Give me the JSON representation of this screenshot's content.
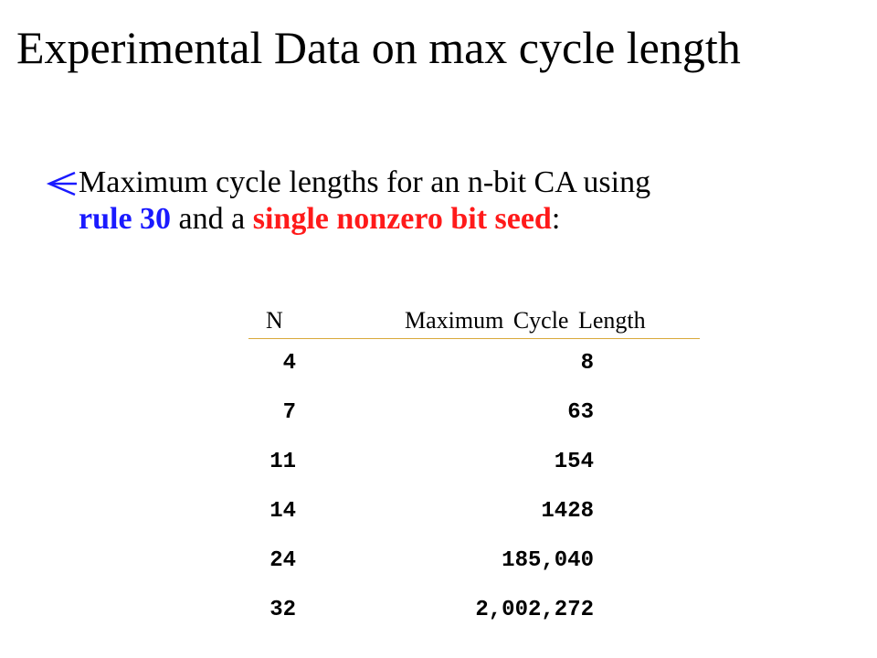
{
  "title": "Experimental Data on max cycle length",
  "bullet": {
    "icon": "arrow-left-icon",
    "line1": "Maximum cycle lengths for an n-bit CA using",
    "rule_text": "rule 30",
    "and_text": " and a ",
    "seed_text": "single nonzero bit seed",
    "colon": ":"
  },
  "colors": {
    "rule_highlight": "#1a1aff",
    "seed_highlight": "#ff1a1a",
    "header_rule": "#d9a93a"
  },
  "table": {
    "headers": {
      "n": "N",
      "length": "Maximum Cycle Length"
    },
    "rows": [
      {
        "n": "4",
        "length": "8"
      },
      {
        "n": "7",
        "length": "63"
      },
      {
        "n": "11",
        "length": "154"
      },
      {
        "n": "14",
        "length": "1428"
      },
      {
        "n": "24",
        "length": "185,040"
      },
      {
        "n": "32",
        "length": "2,002,272"
      }
    ]
  }
}
